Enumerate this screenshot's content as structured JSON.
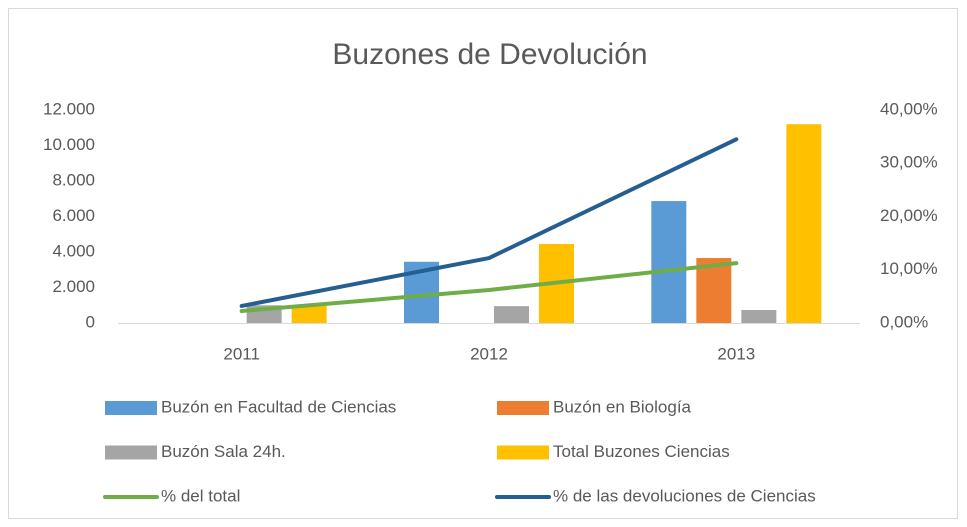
{
  "chart_data": {
    "type": "bar",
    "title": "Buzones de Devolución",
    "categories": [
      "2011",
      "2012",
      "2013"
    ],
    "series": [
      {
        "name": "Buzón en Facultad de Ciencias",
        "color": "#5b9bd5",
        "type": "bar",
        "values": [
          0,
          3450,
          6870
        ]
      },
      {
        "name": "Buzón en Biología",
        "color": "#ed7d31",
        "type": "bar",
        "values": [
          0,
          0,
          3660
        ]
      },
      {
        "name": "Buzón Sala 24h.",
        "color": "#a5a5a5",
        "type": "bar",
        "values": [
          1000,
          950,
          730
        ]
      },
      {
        "name": "Total Buzones Ciencias",
        "color": "#ffc000",
        "type": "bar",
        "values": [
          1000,
          4450,
          11200
        ]
      },
      {
        "name": "% del total",
        "color": "#70ad47",
        "type": "line",
        "axis": "y2",
        "values": [
          2.25,
          6.2,
          11.25
        ]
      },
      {
        "name": "% de las devoluciones de Ciencias",
        "color": "#255e91",
        "type": "line",
        "axis": "y2",
        "values": [
          3.2,
          12.2,
          34.5
        ]
      }
    ],
    "ylim": [
      0,
      12000
    ],
    "yticks": [
      0,
      {
        "value": 2000,
        "label": "2.000"
      },
      {
        "value": 4000,
        "label": "4.000"
      },
      {
        "value": 6000,
        "label": "6.000"
      },
      {
        "value": 8000,
        "label": "8.000"
      },
      {
        "value": 10000,
        "label": "10.000"
      },
      {
        "value": 12000,
        "label": "12.000"
      }
    ],
    "y2lim": [
      0,
      40
    ],
    "y2ticks": [
      {
        "value": 0,
        "label": "0,00%"
      },
      {
        "value": 10,
        "label": "10,00%"
      },
      {
        "value": 20,
        "label": "20,00%"
      },
      {
        "value": 30,
        "label": "30,00%"
      },
      {
        "value": 40,
        "label": "40,00%"
      }
    ],
    "grid": false,
    "legend": "bottom"
  }
}
